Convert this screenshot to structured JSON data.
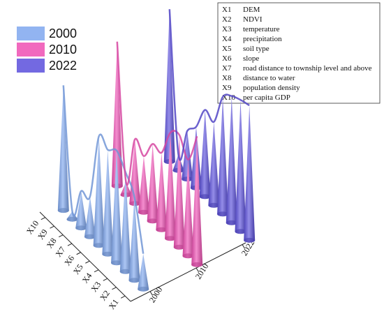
{
  "chart_data": {
    "type": "3d-cone",
    "legend": [
      {
        "label": "2000",
        "color": "#7fa7ee"
      },
      {
        "label": "2010",
        "color": "#ee4fb3"
      },
      {
        "label": "2022",
        "color": "#5b4fdc"
      }
    ],
    "variables": [
      {
        "code": "X1",
        "name": "DEM"
      },
      {
        "code": "X2",
        "name": "NDVI"
      },
      {
        "code": "X3",
        "name": "temperature"
      },
      {
        "code": "X4",
        "name": "precipitation"
      },
      {
        "code": "X5",
        "name": "soil type"
      },
      {
        "code": "X6",
        "name": "slope"
      },
      {
        "code": "X7",
        "name": "road distance to township level and above"
      },
      {
        "code": "X8",
        "name": "distance to water"
      },
      {
        "code": "X9",
        "name": "population density"
      },
      {
        "code": "X10",
        "name": "per capita GDP"
      }
    ],
    "x_ticks": [
      "X1",
      "X2",
      "X3",
      "X4",
      "X5",
      "X6",
      "X7",
      "X8",
      "X9",
      "X10"
    ],
    "y_ticks": [
      "2000",
      "2010",
      "2022"
    ],
    "series": [
      {
        "name": "2000",
        "values": [
          0.22,
          0.52,
          0.62,
          0.7,
          0.65,
          0.68,
          0.25,
          0.23,
          0.05,
          0.78
        ]
      },
      {
        "name": "2010",
        "values": [
          0.8,
          0.6,
          0.7,
          0.66,
          0.48,
          0.48,
          0.35,
          0.4,
          0.08,
          0.9
        ]
      },
      {
        "name": "2022",
        "values": [
          0.84,
          0.82,
          0.79,
          0.73,
          0.52,
          0.54,
          0.38,
          0.3,
          0.1,
          0.95
        ]
      }
    ]
  }
}
